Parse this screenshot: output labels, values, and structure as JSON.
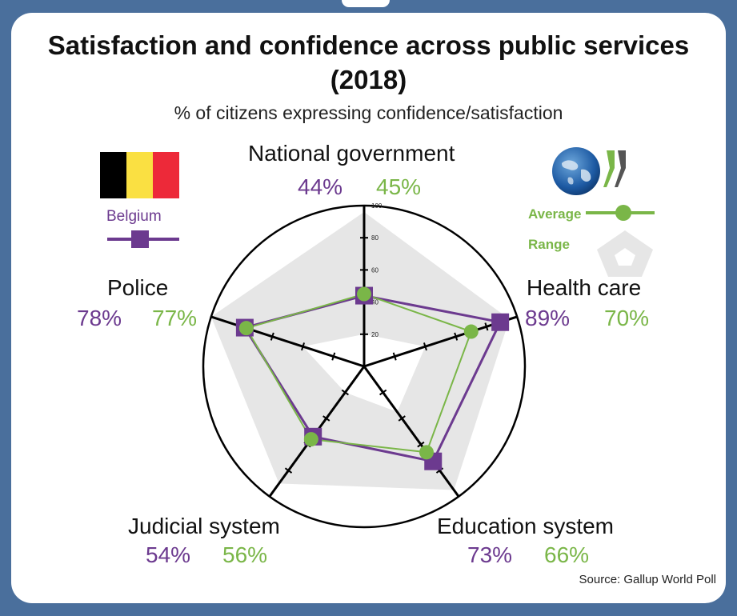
{
  "title_line1": "Satisfaction and confidence across public services",
  "title_line2": "(2018)",
  "subtitle": "% of citizens expressing confidence/satisfaction",
  "source": "Source: Gallup World Poll",
  "legend": {
    "belgium": "Belgium",
    "average": "Average",
    "range": "Range"
  },
  "colors": {
    "background": "#4a6f9c",
    "belgium": "#6c3a8f",
    "average": "#7ab648",
    "range": "#e6e6e6",
    "flag_black": "#000000",
    "flag_yellow": "#fae042",
    "flag_red": "#ed2939"
  },
  "axes": [
    {
      "name": "National government",
      "belgium": "44%",
      "average": "45%"
    },
    {
      "name": "Health care",
      "belgium": "89%",
      "average": "70%"
    },
    {
      "name": "Education system",
      "belgium": "73%",
      "average": "66%"
    },
    {
      "name": "Judicial system",
      "belgium": "54%",
      "average": "56%"
    },
    {
      "name": "Police",
      "belgium": "78%",
      "average": "77%"
    }
  ],
  "chart_data": {
    "type": "radar",
    "categories": [
      "National government",
      "Health care",
      "Education system",
      "Judicial system",
      "Police"
    ],
    "series": [
      {
        "name": "Belgium",
        "values": [
          44,
          89,
          73,
          54,
          78
        ]
      },
      {
        "name": "Average",
        "values": [
          45,
          70,
          66,
          56,
          77
        ]
      }
    ],
    "range": {
      "name": "Range",
      "min": [
        20,
        40,
        35,
        20,
        40
      ],
      "max": [
        96,
        95,
        95,
        90,
        100
      ]
    },
    "scale_ticks": [
      20,
      40,
      60,
      80,
      100
    ],
    "rlim": [
      0,
      100
    ]
  }
}
